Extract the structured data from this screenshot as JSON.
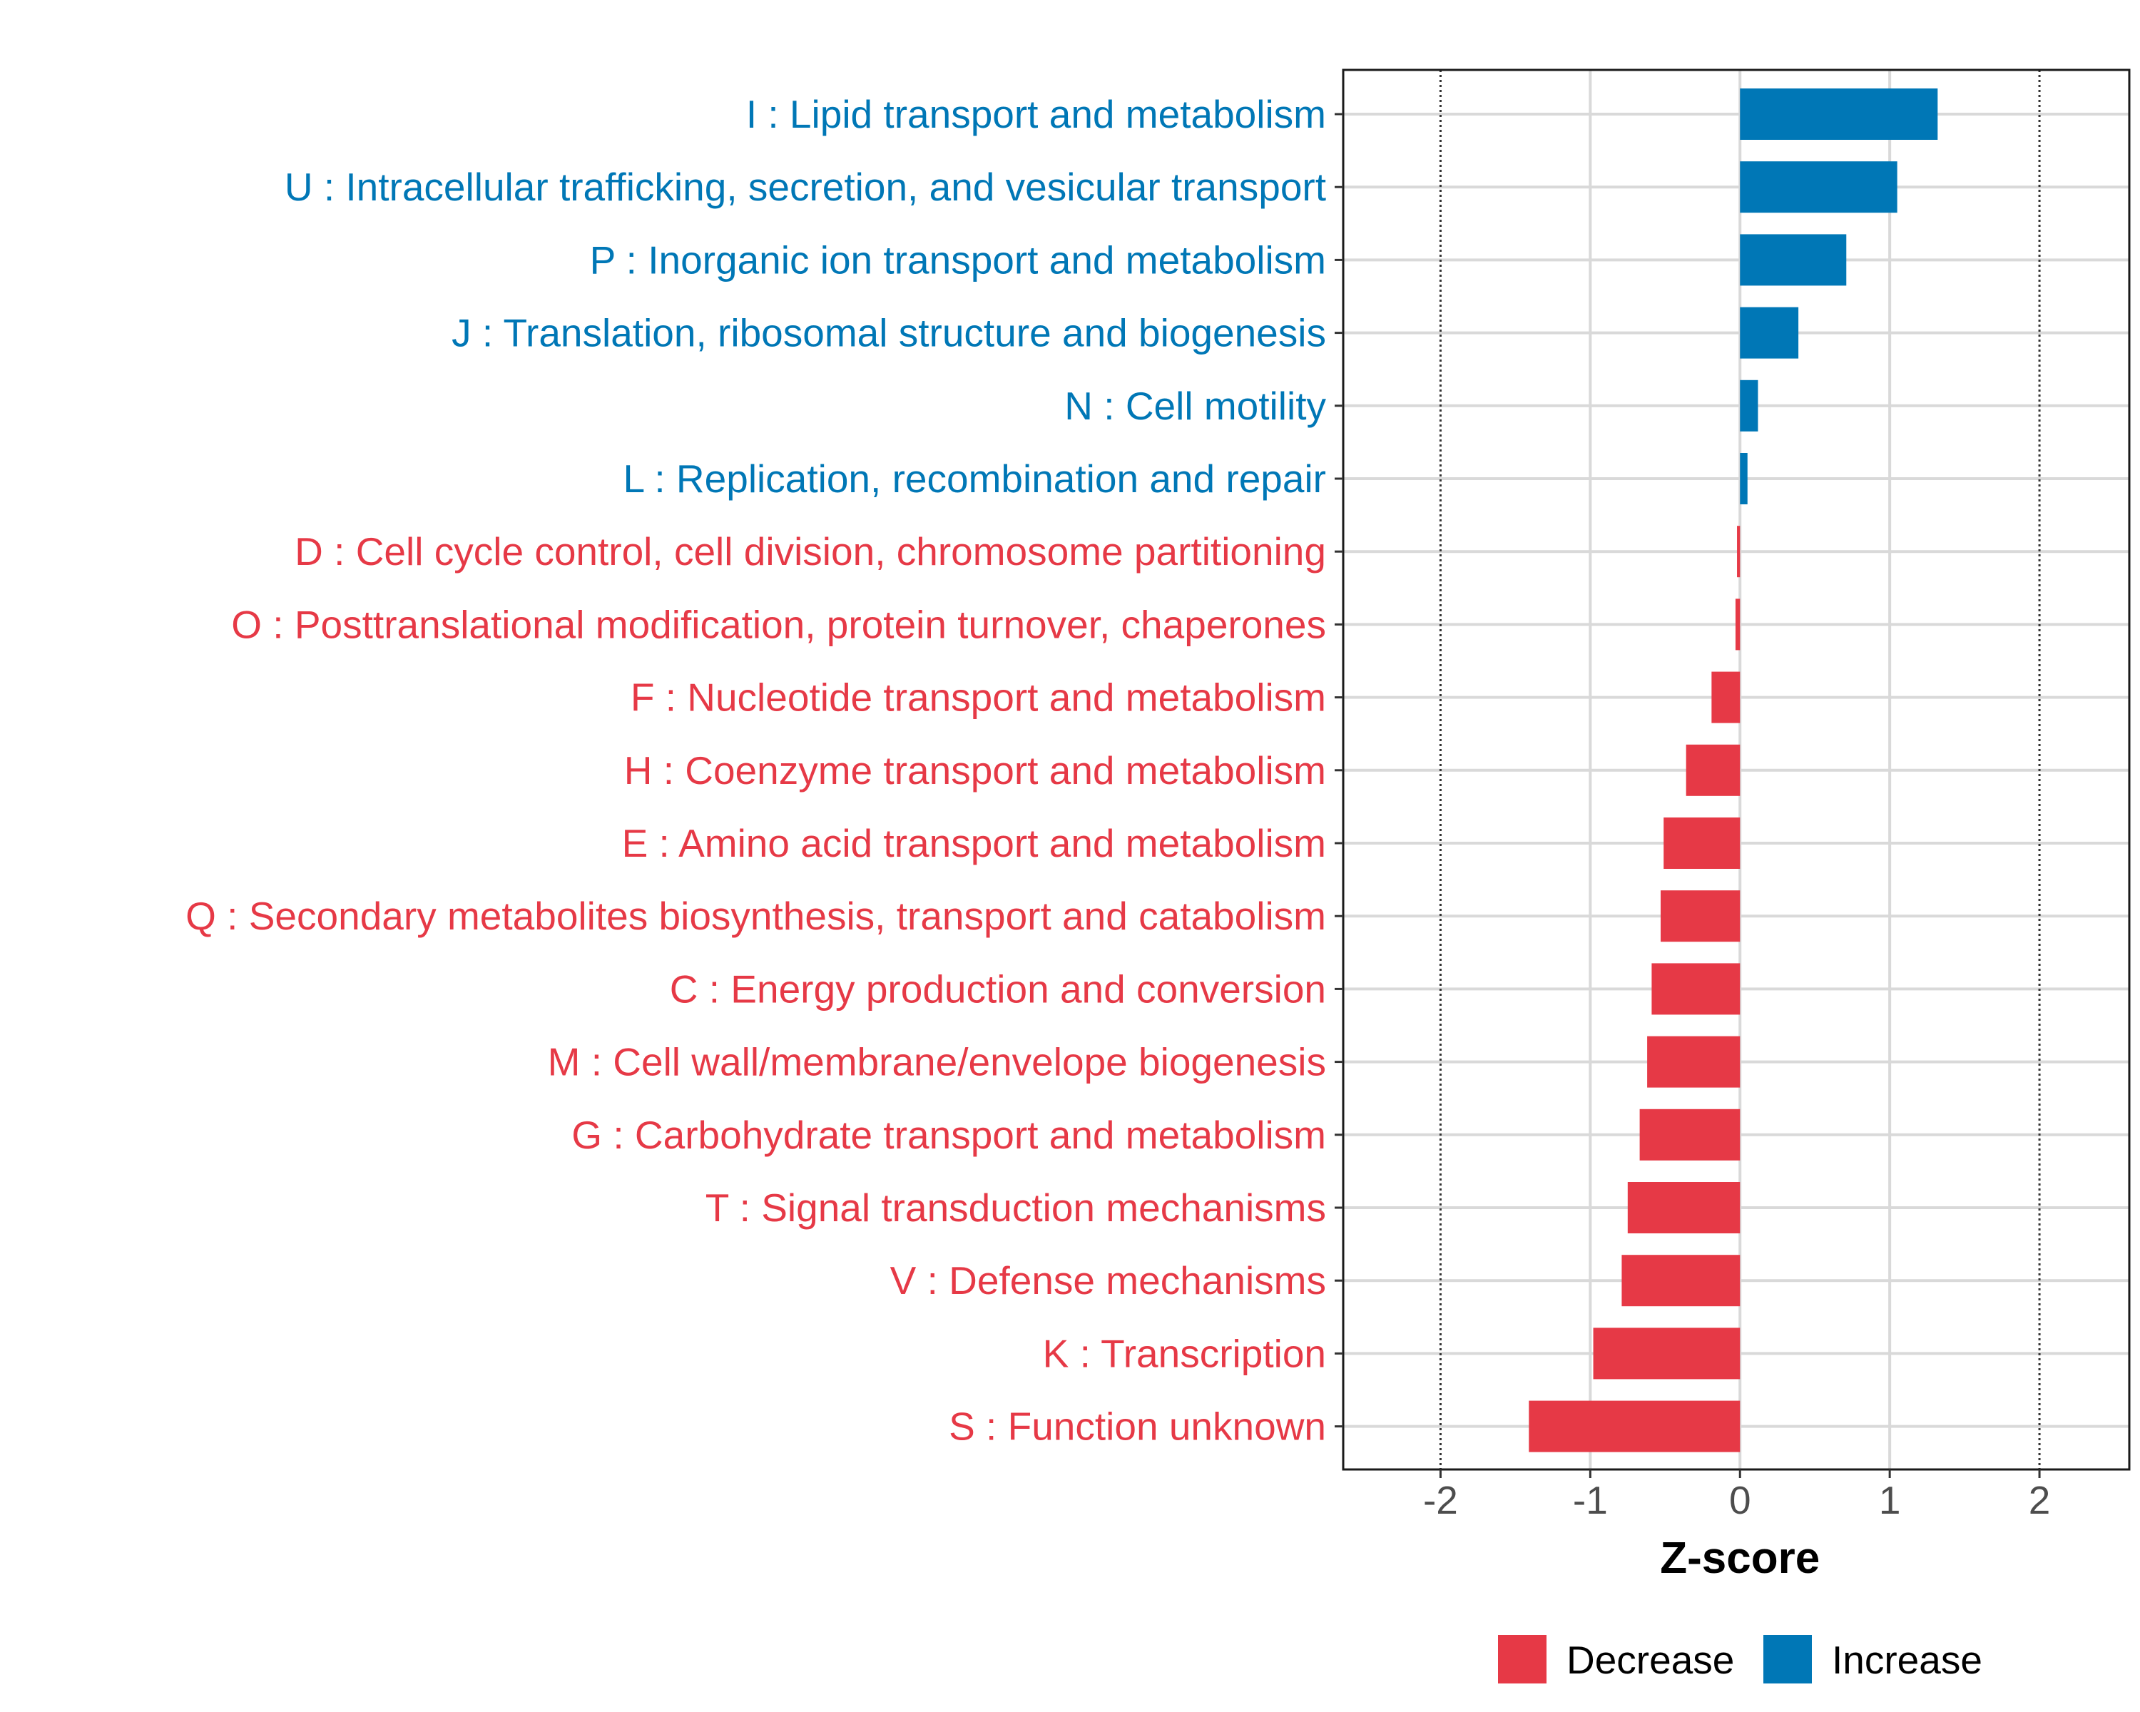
{
  "chart_data": {
    "type": "bar",
    "orientation": "horizontal",
    "xlabel": "Z-score",
    "ylabel": "",
    "xlim": [
      -2.65,
      2.6
    ],
    "xticks": [
      -2,
      -1,
      0,
      1,
      2
    ],
    "xtick_labels": [
      "-2",
      "-1",
      "0",
      "1",
      "2"
    ],
    "reference_lines": [
      -2,
      2
    ],
    "grid": true,
    "legend_position": "bottom",
    "colors": {
      "Decrease": "#e63946",
      "Increase": "#0077b6"
    },
    "legend": [
      {
        "label": "Decrease",
        "color": "#e63946"
      },
      {
        "label": "Increase",
        "color": "#0077b6"
      }
    ],
    "bars": [
      {
        "category": "I : Lipid transport and metabolism",
        "value": 1.32,
        "group": "Increase"
      },
      {
        "category": "U : Intracellular trafficking, secretion, and vesicular transport",
        "value": 1.05,
        "group": "Increase"
      },
      {
        "category": "P : Inorganic ion transport and metabolism",
        "value": 0.71,
        "group": "Increase"
      },
      {
        "category": "J : Translation, ribosomal structure and biogenesis",
        "value": 0.39,
        "group": "Increase"
      },
      {
        "category": "N : Cell motility",
        "value": 0.12,
        "group": "Increase"
      },
      {
        "category": "L : Replication, recombination and repair",
        "value": 0.05,
        "group": "Increase"
      },
      {
        "category": "D : Cell cycle control, cell division, chromosome partitioning",
        "value": -0.02,
        "group": "Decrease"
      },
      {
        "category": "O : Posttranslational modification, protein turnover, chaperones",
        "value": -0.03,
        "group": "Decrease"
      },
      {
        "category": "F : Nucleotide transport and metabolism",
        "value": -0.19,
        "group": "Decrease"
      },
      {
        "category": "H : Coenzyme transport and metabolism",
        "value": -0.36,
        "group": "Decrease"
      },
      {
        "category": "E : Amino acid transport and metabolism",
        "value": -0.51,
        "group": "Decrease"
      },
      {
        "category": "Q : Secondary metabolites biosynthesis, transport and catabolism",
        "value": -0.53,
        "group": "Decrease"
      },
      {
        "category": "C : Energy production and conversion",
        "value": -0.59,
        "group": "Decrease"
      },
      {
        "category": "M : Cell wall/membrane/envelope biogenesis",
        "value": -0.62,
        "group": "Decrease"
      },
      {
        "category": "G : Carbohydrate transport and metabolism",
        "value": -0.67,
        "group": "Decrease"
      },
      {
        "category": "T : Signal transduction mechanisms",
        "value": -0.75,
        "group": "Decrease"
      },
      {
        "category": "V : Defense mechanisms",
        "value": -0.79,
        "group": "Decrease"
      },
      {
        "category": "K : Transcription",
        "value": -0.98,
        "group": "Decrease"
      },
      {
        "category": "S : Function unknown",
        "value": -1.41,
        "group": "Decrease"
      }
    ]
  }
}
